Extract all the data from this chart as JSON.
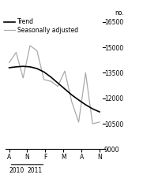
{
  "x_labels": [
    "A",
    "N",
    "F",
    "M",
    "A",
    "N"
  ],
  "x_label_years": [
    "2010",
    "2011"
  ],
  "ylabel": "no.",
  "ylim": [
    9000,
    16500
  ],
  "yticks": [
    9000,
    10500,
    12000,
    13500,
    15000,
    16500
  ],
  "n_points": 14,
  "trend_x": [
    0,
    1,
    2,
    3,
    4,
    5,
    6,
    7,
    8,
    9,
    10,
    11,
    12,
    13
  ],
  "trend_y": [
    13800,
    13850,
    13880,
    13850,
    13750,
    13550,
    13250,
    12900,
    12550,
    12200,
    11900,
    11620,
    11380,
    11200
  ],
  "seasonal_x": [
    0,
    1,
    2,
    3,
    4,
    5,
    6,
    7,
    8,
    9,
    10,
    11,
    12,
    13
  ],
  "seasonal_y": [
    14100,
    14700,
    13200,
    15100,
    14800,
    13100,
    13000,
    12700,
    13600,
    11800,
    10600,
    13500,
    10500,
    10600
  ],
  "trend_color": "#000000",
  "seasonal_color": "#aaaaaa",
  "trend_linewidth": 1.2,
  "seasonal_linewidth": 0.9,
  "legend_trend": "Trend",
  "legend_seasonal": "Seasonally adjusted",
  "background_color": "#ffffff",
  "tick_fontsize": 5.5,
  "legend_fontsize": 5.5
}
